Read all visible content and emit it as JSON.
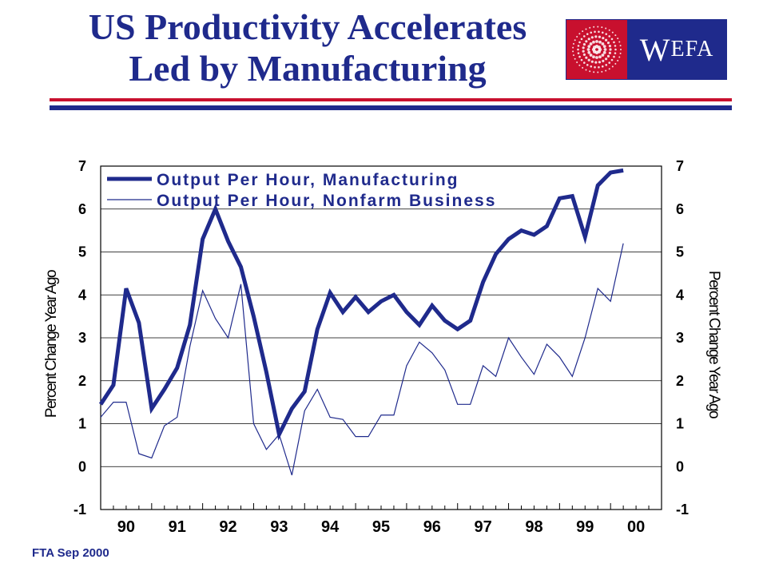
{
  "header": {
    "title_line1": "US Productivity Accelerates",
    "title_line2": "Led by Manufacturing"
  },
  "logo": {
    "text_big": "W",
    "text_small": "EFA",
    "icon": "dotted-globe-icon"
  },
  "footer": {
    "text": "FTA Sep 2000"
  },
  "colors": {
    "navy": "#1f2a8c",
    "red": "#c8102e"
  },
  "chart_data": {
    "type": "line",
    "title": "",
    "ylabel_left": "Percent Change Year Ago",
    "ylabel_right": "Percent Change Year Ago",
    "ylim": [
      -1,
      7
    ],
    "yticks": [
      "-1",
      "0",
      "1",
      "2",
      "3",
      "4",
      "5",
      "6",
      "7"
    ],
    "xlim": [
      1990.0,
      2001.0
    ],
    "xtick_labels": [
      "90",
      "91",
      "92",
      "93",
      "94",
      "95",
      "96",
      "97",
      "98",
      "99",
      "00"
    ],
    "grid": "horizontal",
    "legend_position": "top-left",
    "series": [
      {
        "name": "Output Per Hour, Manufacturing",
        "color": "#1f2a8c",
        "style": "thick",
        "x": [
          1990.0,
          1990.25,
          1990.5,
          1990.75,
          1991.0,
          1991.25,
          1991.5,
          1991.75,
          1992.0,
          1992.25,
          1992.5,
          1992.75,
          1993.0,
          1993.25,
          1993.5,
          1993.75,
          1994.0,
          1994.25,
          1994.5,
          1994.75,
          1995.0,
          1995.25,
          1995.5,
          1995.75,
          1996.0,
          1996.25,
          1996.5,
          1996.75,
          1997.0,
          1997.25,
          1997.5,
          1997.75,
          1998.0,
          1998.25,
          1998.5,
          1998.75,
          1999.0,
          1999.25,
          1999.5,
          1999.75,
          2000.0,
          2000.25
        ],
        "values": [
          1.45,
          1.9,
          4.15,
          3.35,
          1.35,
          1.8,
          2.3,
          3.3,
          5.3,
          6.0,
          5.25,
          4.65,
          3.5,
          2.2,
          0.75,
          1.35,
          1.75,
          3.2,
          4.05,
          3.6,
          3.95,
          3.6,
          3.85,
          4.0,
          3.6,
          3.3,
          3.75,
          3.4,
          3.2,
          3.4,
          4.3,
          4.95,
          5.3,
          5.5,
          5.4,
          5.6,
          6.25,
          6.3,
          5.35,
          6.55,
          6.85,
          6.9
        ]
      },
      {
        "name": "Output Per Hour, Nonfarm Business",
        "color": "#1f2a8c",
        "style": "thin",
        "x": [
          1990.0,
          1990.25,
          1990.5,
          1990.75,
          1991.0,
          1991.25,
          1991.5,
          1991.75,
          1992.0,
          1992.25,
          1992.5,
          1992.75,
          1993.0,
          1993.25,
          1993.5,
          1993.75,
          1994.0,
          1994.25,
          1994.5,
          1994.75,
          1995.0,
          1995.25,
          1995.5,
          1995.75,
          1996.0,
          1996.25,
          1996.5,
          1996.75,
          1997.0,
          1997.25,
          1997.5,
          1997.75,
          1998.0,
          1998.25,
          1998.5,
          1998.75,
          1999.0,
          1999.25,
          1999.5,
          1999.75,
          2000.0,
          2000.25
        ],
        "values": [
          1.15,
          1.5,
          1.5,
          0.3,
          0.2,
          0.95,
          1.15,
          2.8,
          4.1,
          3.45,
          3.0,
          4.25,
          1.0,
          0.4,
          0.75,
          -0.2,
          1.3,
          1.8,
          1.15,
          1.1,
          0.7,
          0.7,
          1.2,
          1.2,
          2.35,
          2.9,
          2.65,
          2.25,
          1.45,
          1.45,
          2.35,
          2.1,
          3.0,
          2.55,
          2.15,
          2.85,
          2.55,
          2.1,
          3.0,
          4.15,
          3.85,
          5.2
        ]
      }
    ]
  }
}
